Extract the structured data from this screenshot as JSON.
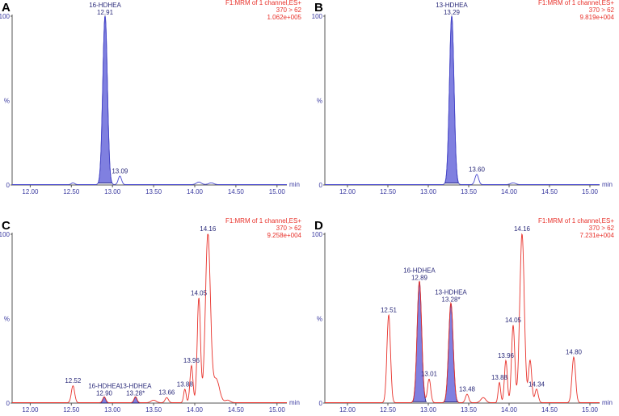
{
  "chart_data": [
    {
      "panel": "A",
      "type": "line",
      "header": [
        "F1:MRM of 1 channel,ES+",
        "370 > 62",
        "1.062e+005"
      ],
      "y_ticks": [
        "0",
        "%",
        "100"
      ],
      "xlabel": "min",
      "xlim": [
        11.78,
        15.12
      ],
      "ylim": [
        0,
        100
      ],
      "x_ticks": [
        "12.00",
        "12.50",
        "13.00",
        "13.50",
        "14.00",
        "14.50",
        "15.00"
      ],
      "peaks": [
        {
          "rt": 12.52,
          "height": 1,
          "width": 0.02
        },
        {
          "rt": 12.91,
          "height": 100,
          "width": 0.028,
          "label": "12.91",
          "name": "16-HDHEA",
          "filled": true
        },
        {
          "rt": 13.09,
          "height": 5,
          "width": 0.02,
          "label": "13.09"
        },
        {
          "rt": 14.05,
          "height": 1.5,
          "width": 0.03
        },
        {
          "rt": 14.2,
          "height": 1,
          "width": 0.03
        }
      ]
    },
    {
      "panel": "B",
      "type": "line",
      "header": [
        "F1:MRM of 1 channel,ES+",
        "370 > 62",
        "9.819e+004"
      ],
      "y_ticks": [
        "0",
        "%",
        "100"
      ],
      "xlabel": "min",
      "xlim": [
        11.72,
        15.12
      ],
      "ylim": [
        0,
        100
      ],
      "x_ticks": [
        "12.00",
        "12.50",
        "13.00",
        "13.50",
        "14.00",
        "14.50",
        "15.00"
      ],
      "peaks": [
        {
          "rt": 13.29,
          "height": 100,
          "width": 0.028,
          "label": "13.29",
          "name": "13-HDHEA",
          "filled": true
        },
        {
          "rt": 13.6,
          "height": 6,
          "width": 0.022,
          "label": "13.60"
        },
        {
          "rt": 14.05,
          "height": 1,
          "width": 0.03
        }
      ]
    },
    {
      "panel": "C",
      "type": "line",
      "header": [
        "F1:MRM of 1 channel,ES+",
        "370 > 62",
        "9.258e+004"
      ],
      "y_ticks": [
        "0",
        "%",
        "100"
      ],
      "xlabel": "min",
      "xlim": [
        11.78,
        15.12
      ],
      "ylim": [
        0,
        100
      ],
      "x_ticks": [
        "12.00",
        "12.50",
        "13.00",
        "13.50",
        "14.00",
        "14.50",
        "15.00"
      ],
      "peaks": [
        {
          "rt": 12.52,
          "height": 10,
          "width": 0.02,
          "label": "12.52"
        },
        {
          "rt": 12.9,
          "height": 3.5,
          "width": 0.018,
          "label": "12.90",
          "name": "16-HDHEA",
          "filled": true
        },
        {
          "rt": 13.28,
          "height": 3.5,
          "width": 0.018,
          "label": "13.28*",
          "name": "13-HDHEA",
          "filled": true
        },
        {
          "rt": 13.5,
          "height": 1.5,
          "width": 0.03
        },
        {
          "rt": 13.66,
          "height": 3,
          "width": 0.02,
          "label": "13.66"
        },
        {
          "rt": 13.88,
          "height": 8,
          "width": 0.015,
          "label": "13.88"
        },
        {
          "rt": 13.96,
          "height": 22,
          "width": 0.018,
          "label": "13.96"
        },
        {
          "rt": 14.05,
          "height": 62,
          "width": 0.02,
          "label": "14.05"
        },
        {
          "rt": 14.16,
          "height": 100,
          "width": 0.03,
          "label": "14.16"
        },
        {
          "rt": 14.26,
          "height": 14,
          "width": 0.04
        },
        {
          "rt": 14.4,
          "height": 1.5,
          "width": 0.03
        }
      ]
    },
    {
      "panel": "D",
      "type": "line",
      "header": [
        "F1:MRM of 1 channel,ES+",
        "370 > 62",
        "7.231e+004"
      ],
      "y_ticks": [
        "0",
        "%",
        "100"
      ],
      "xlabel": "min",
      "xlim": [
        11.72,
        15.12
      ],
      "ylim": [
        0,
        100
      ],
      "x_ticks": [
        "12.00",
        "12.50",
        "13.00",
        "13.50",
        "14.00",
        "14.50",
        "15.00"
      ],
      "peaks": [
        {
          "rt": 12.51,
          "height": 52,
          "width": 0.022,
          "label": "12.51"
        },
        {
          "rt": 12.89,
          "height": 72,
          "width": 0.028,
          "label": "12.89",
          "name": "16-HDHEA",
          "filled": true
        },
        {
          "rt": 13.01,
          "height": 14,
          "width": 0.02,
          "label": "13.01"
        },
        {
          "rt": 13.28,
          "height": 59,
          "width": 0.028,
          "label": "13.28*",
          "name": "13-HDHEA",
          "filled": true
        },
        {
          "rt": 13.48,
          "height": 5,
          "width": 0.02,
          "label": "13.48"
        },
        {
          "rt": 13.68,
          "height": 3,
          "width": 0.03
        },
        {
          "rt": 13.88,
          "height": 12,
          "width": 0.015,
          "label": "13.88"
        },
        {
          "rt": 13.96,
          "height": 25,
          "width": 0.018,
          "label": "13.96"
        },
        {
          "rt": 14.05,
          "height": 46,
          "width": 0.02,
          "label": "14.05"
        },
        {
          "rt": 14.16,
          "height": 100,
          "width": 0.028,
          "label": "14.16"
        },
        {
          "rt": 14.26,
          "height": 25,
          "width": 0.02
        },
        {
          "rt": 14.34,
          "height": 8,
          "width": 0.02,
          "label": "14.34"
        },
        {
          "rt": 14.8,
          "height": 27,
          "width": 0.022,
          "label": "14.80"
        }
      ]
    }
  ]
}
